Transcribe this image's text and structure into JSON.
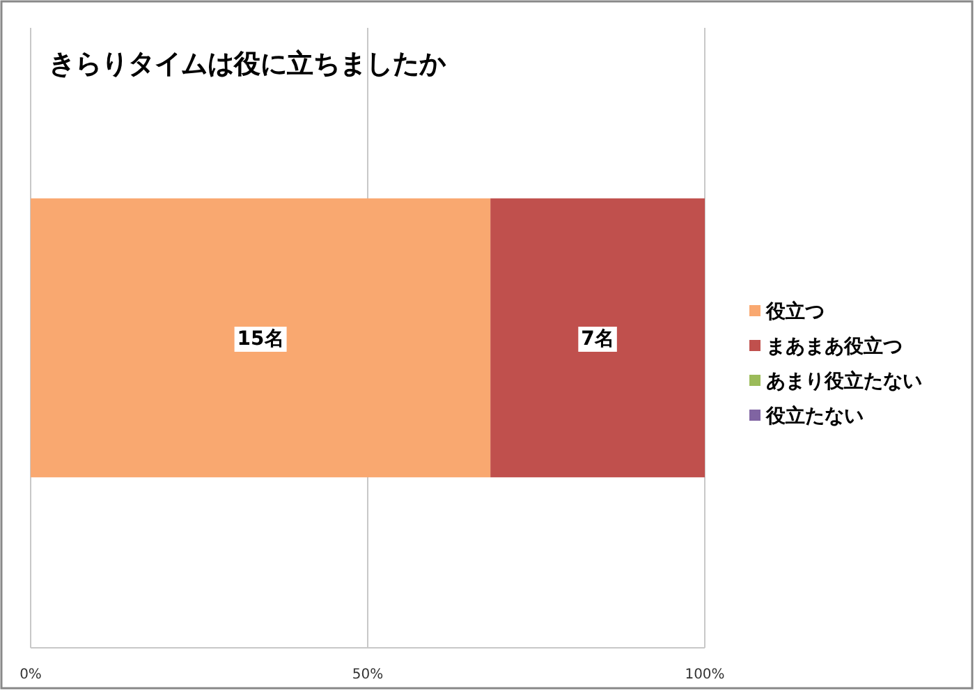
{
  "chart_data": {
    "type": "bar",
    "orientation": "horizontal",
    "stacked": true,
    "title": "きらりタイムは役に立ちましたか",
    "categories": [
      null
    ],
    "series": [
      {
        "name": "役立つ",
        "color": "#f9a870",
        "values": [
          68.2
        ]
      },
      {
        "name": "まあまあ役立つ",
        "color": "#c0504d",
        "values": [
          31.8
        ]
      },
      {
        "name": "あまり役立たない",
        "color": "#9bbb59",
        "values": [
          0
        ]
      },
      {
        "name": "役立たない",
        "color": "#8064a2",
        "values": [
          0
        ]
      }
    ],
    "annotations": [
      {
        "text": "15名",
        "x": 34.1
      },
      {
        "text": "7名",
        "x": 84.1
      }
    ],
    "xlim": [
      0,
      100
    ],
    "xticks": [
      {
        "value": 0,
        "label": "0%"
      },
      {
        "value": 50,
        "label": "50%"
      },
      {
        "value": 100,
        "label": "100%"
      }
    ],
    "grid": "x",
    "legend": "right"
  }
}
